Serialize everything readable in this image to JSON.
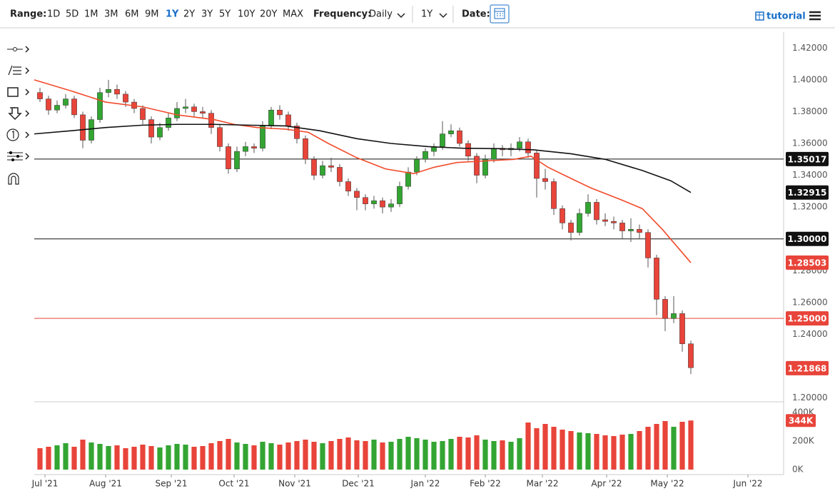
{
  "toolbar": {
    "range_label": "Range:",
    "ranges": [
      "1D",
      "5D",
      "1M",
      "3M",
      "6M",
      "9M",
      "1Y",
      "2Y",
      "3Y",
      "5Y",
      "10Y",
      "20Y",
      "MAX"
    ],
    "frequency_label": "Frequency:",
    "frequency": "Daily",
    "period": "1Y",
    "date_label": "Date:",
    "tutorial": "tutorial"
  },
  "chart_data": {
    "type": "candlestick",
    "x": [
      2,
      5,
      8,
      11,
      14,
      17,
      20,
      23,
      26,
      29,
      32,
      35,
      38,
      41,
      44,
      47,
      50,
      53,
      56,
      59,
      62,
      65,
      68,
      71,
      74,
      77,
      80,
      83,
      86,
      89,
      92,
      95,
      98,
      101,
      104,
      107,
      110,
      113,
      116,
      119,
      122,
      125,
      128,
      131,
      134,
      137,
      140,
      143,
      146,
      149,
      152,
      155,
      158,
      161,
      164,
      167,
      170,
      173,
      176,
      179,
      182,
      185,
      188,
      191,
      194,
      197,
      200,
      203,
      206,
      209,
      212,
      215,
      218,
      221,
      224,
      227,
      230
    ],
    "open": [
      1.392,
      1.388,
      1.381,
      1.384,
      1.388,
      1.378,
      1.362,
      1.375,
      1.392,
      1.394,
      1.391,
      1.386,
      1.382,
      1.375,
      1.364,
      1.37,
      1.376,
      1.382,
      1.383,
      1.38,
      1.379,
      1.37,
      1.358,
      1.344,
      1.355,
      1.358,
      1.357,
      1.371,
      1.381,
      1.378,
      1.371,
      1.363,
      1.35,
      1.34,
      1.346,
      1.345,
      1.336,
      1.33,
      1.326,
      1.322,
      1.324,
      1.32,
      1.322,
      1.333,
      1.342,
      1.35,
      1.355,
      1.358,
      1.366,
      1.368,
      1.36,
      1.352,
      1.34,
      1.35,
      1.357,
      1.356,
      1.357,
      1.361,
      1.354,
      1.338,
      1.336,
      1.319,
      1.31,
      1.304,
      1.316,
      1.323,
      1.312,
      1.311,
      1.31,
      1.305,
      1.306,
      1.304,
      1.288,
      1.262,
      1.25,
      1.253,
      1.234
    ],
    "high": [
      1.395,
      1.39,
      1.387,
      1.391,
      1.39,
      1.38,
      1.377,
      1.395,
      1.4,
      1.397,
      1.393,
      1.388,
      1.384,
      1.377,
      1.373,
      1.379,
      1.386,
      1.388,
      1.385,
      1.383,
      1.381,
      1.372,
      1.36,
      1.358,
      1.361,
      1.36,
      1.374,
      1.383,
      1.384,
      1.38,
      1.373,
      1.365,
      1.352,
      1.349,
      1.351,
      1.347,
      1.338,
      1.332,
      1.328,
      1.327,
      1.326,
      1.325,
      1.336,
      1.345,
      1.352,
      1.357,
      1.36,
      1.374,
      1.372,
      1.37,
      1.362,
      1.354,
      1.353,
      1.36,
      1.359,
      1.36,
      1.364,
      1.363,
      1.356,
      1.344,
      1.338,
      1.321,
      1.312,
      1.319,
      1.328,
      1.325,
      1.316,
      1.314,
      1.312,
      1.313,
      1.309,
      1.306,
      1.29,
      1.264,
      1.264,
      1.255,
      1.236
    ],
    "low": [
      1.386,
      1.378,
      1.379,
      1.382,
      1.376,
      1.357,
      1.36,
      1.373,
      1.389,
      1.388,
      1.383,
      1.379,
      1.372,
      1.36,
      1.362,
      1.368,
      1.374,
      1.379,
      1.377,
      1.376,
      1.366,
      1.355,
      1.341,
      1.342,
      1.352,
      1.354,
      1.355,
      1.369,
      1.375,
      1.368,
      1.36,
      1.347,
      1.337,
      1.338,
      1.342,
      1.333,
      1.327,
      1.318,
      1.318,
      1.319,
      1.316,
      1.317,
      1.32,
      1.331,
      1.34,
      1.348,
      1.352,
      1.356,
      1.364,
      1.358,
      1.349,
      1.335,
      1.338,
      1.348,
      1.352,
      1.352,
      1.355,
      1.351,
      1.326,
      1.331,
      1.315,
      1.306,
      1.299,
      1.302,
      1.314,
      1.309,
      1.308,
      1.306,
      1.3,
      1.298,
      1.3,
      1.282,
      1.252,
      1.242,
      1.247,
      1.229,
      1.215
    ],
    "close": [
      1.388,
      1.381,
      1.384,
      1.388,
      1.378,
      1.362,
      1.375,
      1.392,
      1.394,
      1.391,
      1.386,
      1.382,
      1.375,
      1.364,
      1.37,
      1.376,
      1.382,
      1.383,
      1.38,
      1.379,
      1.37,
      1.358,
      1.344,
      1.355,
      1.358,
      1.357,
      1.371,
      1.381,
      1.378,
      1.371,
      1.363,
      1.35,
      1.34,
      1.346,
      1.345,
      1.336,
      1.33,
      1.326,
      1.322,
      1.324,
      1.32,
      1.322,
      1.333,
      1.342,
      1.35,
      1.355,
      1.358,
      1.366,
      1.368,
      1.36,
      1.352,
      1.34,
      1.35,
      1.357,
      1.356,
      1.357,
      1.361,
      1.354,
      1.338,
      1.336,
      1.319,
      1.31,
      1.304,
      1.316,
      1.323,
      1.312,
      1.311,
      1.31,
      1.305,
      1.306,
      1.304,
      1.288,
      1.262,
      1.25,
      1.253,
      1.234,
      1.219
    ],
    "volume": [
      150000,
      160000,
      170000,
      185000,
      160000,
      210000,
      190000,
      180000,
      165000,
      170000,
      150000,
      160000,
      175000,
      165000,
      155000,
      170000,
      180000,
      175000,
      160000,
      165000,
      185000,
      200000,
      215000,
      190000,
      180000,
      170000,
      195000,
      185000,
      175000,
      190000,
      200000,
      210000,
      195000,
      185000,
      200000,
      215000,
      225000,
      205000,
      200000,
      210000,
      190000,
      195000,
      215000,
      230000,
      220000,
      210000,
      195000,
      200000,
      215000,
      230000,
      225000,
      240000,
      210000,
      200000,
      205000,
      195000,
      220000,
      330000,
      290000,
      320000,
      300000,
      280000,
      270000,
      260000,
      255000,
      250000,
      240000,
      235000,
      245000,
      250000,
      270000,
      300000,
      320000,
      340000,
      300000,
      335000,
      344000
    ],
    "up_color": "#33a532",
    "down_color": "#e8443a",
    "lines": [
      {
        "color": "#f04a2a",
        "x": [
          0,
          13,
          25,
          38,
          50,
          63,
          70,
          78,
          88,
          96,
          103,
          113,
          123,
          133,
          140,
          148,
          158,
          168,
          174,
          180,
          188,
          195,
          205,
          213,
          220,
          230
        ],
        "values": [
          1.4,
          1.393,
          1.386,
          1.383,
          1.378,
          1.375,
          1.372,
          1.37,
          1.369,
          1.367,
          1.36,
          1.351,
          1.344,
          1.341,
          1.345,
          1.348,
          1.349,
          1.35,
          1.352,
          1.345,
          1.338,
          1.332,
          1.325,
          1.319,
          1.306,
          1.28503
        ]
      },
      {
        "color": "#111111",
        "x": [
          0,
          13,
          25,
          38,
          50,
          63,
          75,
          88,
          100,
          113,
          125,
          138,
          150,
          163,
          175,
          188,
          200,
          213,
          223,
          230
        ],
        "values": [
          1.366,
          1.368,
          1.37,
          1.3715,
          1.372,
          1.372,
          1.3715,
          1.371,
          1.368,
          1.363,
          1.36,
          1.358,
          1.357,
          1.3567,
          1.356,
          1.3535,
          1.35,
          1.343,
          1.3365,
          1.32915
        ]
      }
    ],
    "price_labels": [
      {
        "value": 1.35017,
        "label": "1.35017",
        "color": "#111111",
        "line": true
      },
      {
        "value": 1.32915,
        "label": "1.32915",
        "color": "#111111",
        "line": false
      },
      {
        "value": 1.3,
        "label": "1.30000",
        "color": "#111111",
        "line": true
      },
      {
        "value": 1.28503,
        "label": "1.28503",
        "color": "#e8443a",
        "line": false
      },
      {
        "value": 1.25,
        "label": "1.25000",
        "color": "#e8443a",
        "line": true
      },
      {
        "value": 1.21868,
        "label": "1.21868",
        "color": "#e8443a",
        "line": false
      }
    ],
    "volume_label": {
      "value": 344000,
      "label": "344K",
      "color": "#e8443a"
    },
    "xlim": [
      0,
      262.5
    ],
    "xticks": [
      {
        "value": 3.75,
        "label": "Jul '21"
      },
      {
        "value": 25,
        "label": "Aug '21"
      },
      {
        "value": 48,
        "label": "Sep '21"
      },
      {
        "value": 70,
        "label": "Oct '21"
      },
      {
        "value": 91.25,
        "label": "Nov '21"
      },
      {
        "value": 113.5,
        "label": "Dec '21"
      },
      {
        "value": 137,
        "label": "Jan '22"
      },
      {
        "value": 158,
        "label": "Feb '22"
      },
      {
        "value": 178,
        "label": "Mar '22"
      },
      {
        "value": 200.5,
        "label": "Apr '22"
      },
      {
        "value": 221.75,
        "label": "May '22"
      },
      {
        "value": 250,
        "label": "Jun '22"
      }
    ],
    "ylim": [
      1.198,
      1.43
    ],
    "yticks": [
      {
        "value": 1.42,
        "label": "1.42000"
      },
      {
        "value": 1.4,
        "label": "1.40000"
      },
      {
        "value": 1.38,
        "label": "1.38000"
      },
      {
        "value": 1.36,
        "label": "1.36000"
      },
      {
        "value": 1.34,
        "label": "1.34000"
      },
      {
        "value": 1.32,
        "label": "1.32000"
      },
      {
        "value": 1.3,
        "label": "1.30000"
      },
      {
        "value": 1.28,
        "label": "1.28000"
      },
      {
        "value": 1.26,
        "label": "1.26000"
      },
      {
        "value": 1.24,
        "label": "1.24000"
      },
      {
        "value": 1.22,
        "label": "1.22000"
      },
      {
        "value": 1.2,
        "label": "1.20000"
      }
    ],
    "volume_ylim": [
      0,
      400000
    ],
    "volume_yticks": [
      {
        "value": 400000,
        "label": "400K"
      },
      {
        "value": 200000,
        "label": "200K"
      },
      {
        "value": 0,
        "label": "0K"
      }
    ],
    "grid": false
  }
}
